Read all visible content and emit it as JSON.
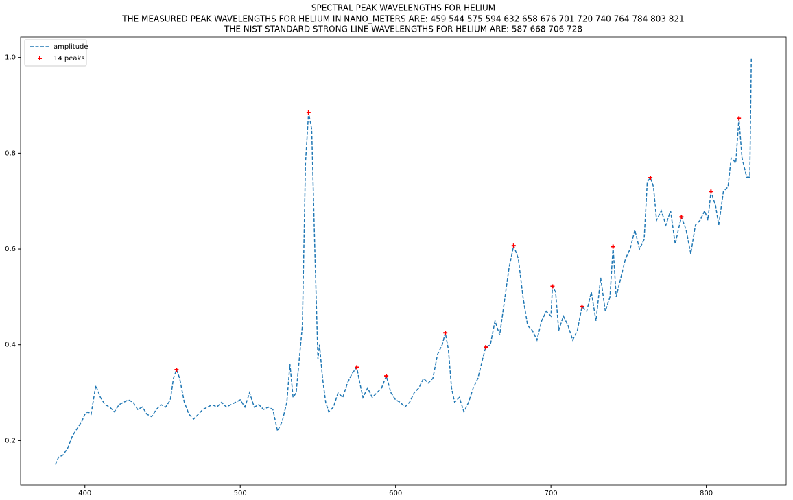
{
  "chart_data": {
    "type": "line",
    "title": [
      "SPECTRAL PEAK WAVELENGTHS FOR HELIUM",
      "THE MEASURED PEAK WAVELENGTHS FOR HELIUM IN NANO_METERS ARE: 459 544 575 594 632 658 676 701 720 740 764 784 803 821",
      "THE NIST STANDARD STRONG LINE WAVELENGTHS FOR HELIUM ARE: 587 668 706 728"
    ],
    "xlim": [
      358.6,
      851.4
    ],
    "ylim": [
      0.1075,
      1.0425
    ],
    "xticks": [
      400,
      500,
      600,
      700,
      800
    ],
    "yticks": [
      0.2,
      0.4,
      0.6,
      0.8,
      {
        "value": 1,
        "label": "1.0"
      }
    ],
    "legend": "upper left",
    "series": [
      {
        "name": "amplitude",
        "color": "#1f77b4",
        "style": "dashed",
        "x": [
          381,
          383,
          386,
          389,
          392,
          395,
          398,
          400,
          402,
          404,
          407,
          410,
          413,
          416,
          419,
          422,
          425,
          428,
          431,
          434,
          437,
          440,
          443,
          446,
          449,
          452,
          455,
          457,
          459,
          461,
          464,
          467,
          470,
          473,
          476,
          479,
          482,
          485,
          488,
          491,
          494,
          497,
          500,
          503,
          506,
          509,
          512,
          515,
          518,
          521,
          524,
          527,
          530,
          532,
          534,
          536,
          538,
          540,
          542,
          544,
          546,
          548,
          550,
          551,
          553,
          555,
          557,
          560,
          563,
          566,
          569,
          572,
          575,
          577,
          579,
          582,
          585,
          588,
          591,
          594,
          597,
          600,
          603,
          606,
          609,
          612,
          615,
          618,
          621,
          624,
          627,
          630,
          632,
          634,
          636,
          638,
          641,
          644,
          647,
          650,
          653,
          656,
          658,
          661,
          664,
          667,
          670,
          673,
          676,
          679,
          682,
          685,
          688,
          691,
          694,
          697,
          700,
          701,
          703,
          705,
          708,
          711,
          714,
          717,
          720,
          723,
          726,
          729,
          732,
          735,
          738,
          740,
          742,
          745,
          748,
          751,
          754,
          757,
          760,
          762,
          764,
          766,
          768,
          771,
          774,
          777,
          780,
          782,
          784,
          787,
          790,
          793,
          796,
          799,
          801,
          803,
          806,
          808,
          811,
          814,
          816,
          819,
          821,
          823,
          826,
          828,
          829
        ],
        "values": [
          0.15,
          0.165,
          0.17,
          0.185,
          0.21,
          0.225,
          0.24,
          0.255,
          0.26,
          0.255,
          0.315,
          0.29,
          0.275,
          0.27,
          0.26,
          0.275,
          0.28,
          0.285,
          0.28,
          0.265,
          0.27,
          0.255,
          0.25,
          0.265,
          0.275,
          0.27,
          0.285,
          0.33,
          0.348,
          0.33,
          0.28,
          0.255,
          0.245,
          0.255,
          0.265,
          0.27,
          0.275,
          0.27,
          0.28,
          0.27,
          0.275,
          0.28,
          0.285,
          0.27,
          0.3,
          0.27,
          0.275,
          0.265,
          0.27,
          0.265,
          0.22,
          0.24,
          0.28,
          0.36,
          0.29,
          0.3,
          0.37,
          0.44,
          0.78,
          0.885,
          0.85,
          0.6,
          0.37,
          0.4,
          0.33,
          0.28,
          0.26,
          0.27,
          0.3,
          0.29,
          0.32,
          0.34,
          0.353,
          0.32,
          0.29,
          0.31,
          0.29,
          0.3,
          0.31,
          0.335,
          0.3,
          0.285,
          0.28,
          0.27,
          0.28,
          0.3,
          0.31,
          0.33,
          0.32,
          0.33,
          0.38,
          0.4,
          0.425,
          0.39,
          0.31,
          0.28,
          0.29,
          0.26,
          0.28,
          0.31,
          0.33,
          0.37,
          0.395,
          0.4,
          0.45,
          0.42,
          0.49,
          0.56,
          0.607,
          0.58,
          0.5,
          0.44,
          0.43,
          0.41,
          0.45,
          0.47,
          0.46,
          0.522,
          0.51,
          0.43,
          0.46,
          0.44,
          0.41,
          0.43,
          0.48,
          0.47,
          0.51,
          0.45,
          0.54,
          0.47,
          0.5,
          0.605,
          0.5,
          0.54,
          0.58,
          0.6,
          0.64,
          0.6,
          0.62,
          0.74,
          0.749,
          0.73,
          0.66,
          0.68,
          0.65,
          0.68,
          0.61,
          0.64,
          0.667,
          0.64,
          0.59,
          0.65,
          0.66,
          0.68,
          0.66,
          0.72,
          0.69,
          0.65,
          0.72,
          0.73,
          0.79,
          0.78,
          0.873,
          0.79,
          0.75,
          0.75,
          1.0
        ]
      },
      {
        "name": "14 peaks",
        "color": "red",
        "marker": "+",
        "x": [
          459,
          544,
          575,
          594,
          632,
          658,
          676,
          701,
          720,
          740,
          764,
          784,
          803,
          821
        ],
        "values": [
          0.348,
          0.885,
          0.353,
          0.335,
          0.425,
          0.395,
          0.607,
          0.522,
          0.48,
          0.605,
          0.749,
          0.667,
          0.72,
          0.873
        ]
      }
    ]
  }
}
